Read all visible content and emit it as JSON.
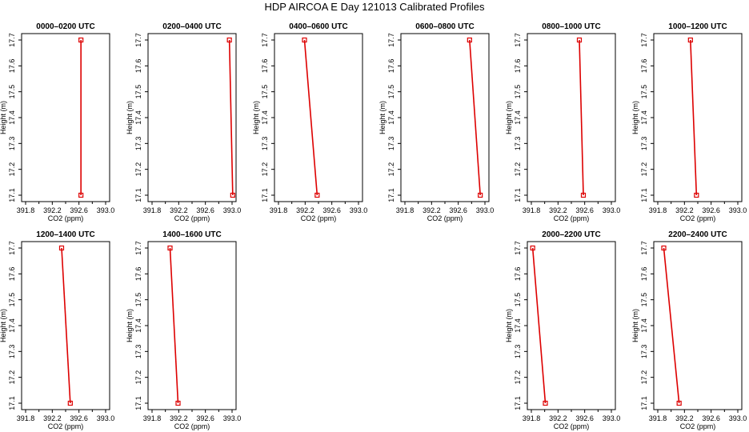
{
  "title": "HDP AIRCOA E  Day 121013  Calibrated Profiles",
  "chart_data": [
    {
      "type": "line",
      "title": "0000–0200 UTC",
      "xlabel": "CO2 (ppm)",
      "ylabel": "Height (m)",
      "x_ticks": [
        "391.8",
        "392.2",
        "392.6",
        "393.0"
      ],
      "y_ticks": [
        "17.1",
        "17.2",
        "17.3",
        "17.4",
        "17.5",
        "17.6",
        "17.7"
      ],
      "xlim": [
        391.8,
        393.0
      ],
      "ylim": [
        17.1,
        17.7
      ],
      "color": "#dd0000",
      "points": [
        {
          "x": 392.63,
          "y": 17.1
        },
        {
          "x": 392.63,
          "y": 17.7
        }
      ]
    },
    {
      "type": "line",
      "title": "0200–0400 UTC",
      "xlabel": "CO2 (ppm)",
      "ylabel": "Height (m)",
      "x_ticks": [
        "391.8",
        "392.2",
        "392.6",
        "393.0"
      ],
      "y_ticks": [
        "17.1",
        "17.2",
        "17.3",
        "17.4",
        "17.5",
        "17.6",
        "17.7"
      ],
      "xlim": [
        391.8,
        393.0
      ],
      "ylim": [
        17.1,
        17.7
      ],
      "color": "#dd0000",
      "points": [
        {
          "x": 393.01,
          "y": 17.1
        },
        {
          "x": 392.96,
          "y": 17.7
        }
      ]
    },
    {
      "type": "line",
      "title": "0400–0600 UTC",
      "xlabel": "CO2 (ppm)",
      "ylabel": "Height (m)",
      "x_ticks": [
        "391.8",
        "392.2",
        "392.6",
        "393.0"
      ],
      "y_ticks": [
        "17.1",
        "17.2",
        "17.3",
        "17.4",
        "17.5",
        "17.6",
        "17.7"
      ],
      "xlim": [
        391.8,
        393.0
      ],
      "ylim": [
        17.1,
        17.7
      ],
      "color": "#dd0000",
      "points": [
        {
          "x": 392.38,
          "y": 17.1
        },
        {
          "x": 392.19,
          "y": 17.7
        }
      ]
    },
    {
      "type": "line",
      "title": "0600–0800 UTC",
      "xlabel": "CO2 (ppm)",
      "ylabel": "Height (m)",
      "x_ticks": [
        "391.8",
        "392.2",
        "392.6",
        "393.0"
      ],
      "y_ticks": [
        "17.1",
        "17.2",
        "17.3",
        "17.4",
        "17.5",
        "17.6",
        "17.7"
      ],
      "xlim": [
        391.8,
        393.0
      ],
      "ylim": [
        17.1,
        17.7
      ],
      "color": "#dd0000",
      "points": [
        {
          "x": 392.93,
          "y": 17.1
        },
        {
          "x": 392.77,
          "y": 17.7
        }
      ]
    },
    {
      "type": "line",
      "title": "0800–1000 UTC",
      "xlabel": "CO2 (ppm)",
      "ylabel": "Height (m)",
      "x_ticks": [
        "391.8",
        "392.2",
        "392.6",
        "393.0"
      ],
      "y_ticks": [
        "17.1",
        "17.2",
        "17.3",
        "17.4",
        "17.5",
        "17.6",
        "17.7"
      ],
      "xlim": [
        391.8,
        393.0
      ],
      "ylim": [
        17.1,
        17.7
      ],
      "color": "#dd0000",
      "points": [
        {
          "x": 392.58,
          "y": 17.1
        },
        {
          "x": 392.52,
          "y": 17.7
        }
      ]
    },
    {
      "type": "line",
      "title": "1000–1200 UTC",
      "xlabel": "CO2 (ppm)",
      "ylabel": "Height (m)",
      "x_ticks": [
        "391.8",
        "392.2",
        "392.6",
        "393.0"
      ],
      "y_ticks": [
        "17.1",
        "17.2",
        "17.3",
        "17.4",
        "17.5",
        "17.6",
        "17.7"
      ],
      "xlim": [
        391.8,
        393.0
      ],
      "ylim": [
        17.1,
        17.7
      ],
      "color": "#dd0000",
      "points": [
        {
          "x": 392.38,
          "y": 17.1
        },
        {
          "x": 392.29,
          "y": 17.7
        }
      ]
    },
    {
      "type": "line",
      "title": "1200–1400 UTC",
      "xlabel": "CO2 (ppm)",
      "ylabel": "Height (m)",
      "x_ticks": [
        "391.8",
        "392.2",
        "392.6",
        "393.0"
      ],
      "y_ticks": [
        "17.1",
        "17.2",
        "17.3",
        "17.4",
        "17.5",
        "17.6",
        "17.7"
      ],
      "xlim": [
        391.8,
        393.0
      ],
      "ylim": [
        17.1,
        17.7
      ],
      "color": "#dd0000",
      "points": [
        {
          "x": 392.47,
          "y": 17.1
        },
        {
          "x": 392.34,
          "y": 17.7
        }
      ]
    },
    {
      "type": "line",
      "title": "1400–1600 UTC",
      "xlabel": "CO2 (ppm)",
      "ylabel": "Height (m)",
      "x_ticks": [
        "391.8",
        "392.2",
        "392.6",
        "393.0"
      ],
      "y_ticks": [
        "17.1",
        "17.2",
        "17.3",
        "17.4",
        "17.5",
        "17.6",
        "17.7"
      ],
      "xlim": [
        391.8,
        393.0
      ],
      "ylim": [
        17.1,
        17.7
      ],
      "color": "#dd0000",
      "points": [
        {
          "x": 392.19,
          "y": 17.1
        },
        {
          "x": 392.07,
          "y": 17.7
        }
      ]
    },
    {
      "type": "line",
      "title": "2000–2200 UTC",
      "xlabel": "CO2 (ppm)",
      "ylabel": "Height (m)",
      "x_ticks": [
        "391.8",
        "392.2",
        "392.6",
        "393.0"
      ],
      "y_ticks": [
        "17.1",
        "17.2",
        "17.3",
        "17.4",
        "17.5",
        "17.6",
        "17.7"
      ],
      "xlim": [
        391.8,
        393.0
      ],
      "ylim": [
        17.1,
        17.7
      ],
      "color": "#dd0000",
      "points": [
        {
          "x": 392.01,
          "y": 17.1
        },
        {
          "x": 391.82,
          "y": 17.7
        }
      ]
    },
    {
      "type": "line",
      "title": "2200–2400 UTC",
      "xlabel": "CO2 (ppm)",
      "ylabel": "Height (m)",
      "x_ticks": [
        "391.8",
        "392.2",
        "392.6",
        "393.0"
      ],
      "y_ticks": [
        "17.1",
        "17.2",
        "17.3",
        "17.4",
        "17.5",
        "17.6",
        "17.7"
      ],
      "xlim": [
        391.8,
        393.0
      ],
      "ylim": [
        17.1,
        17.7
      ],
      "color": "#dd0000",
      "points": [
        {
          "x": 392.12,
          "y": 17.1
        },
        {
          "x": 391.89,
          "y": 17.7
        }
      ]
    }
  ]
}
